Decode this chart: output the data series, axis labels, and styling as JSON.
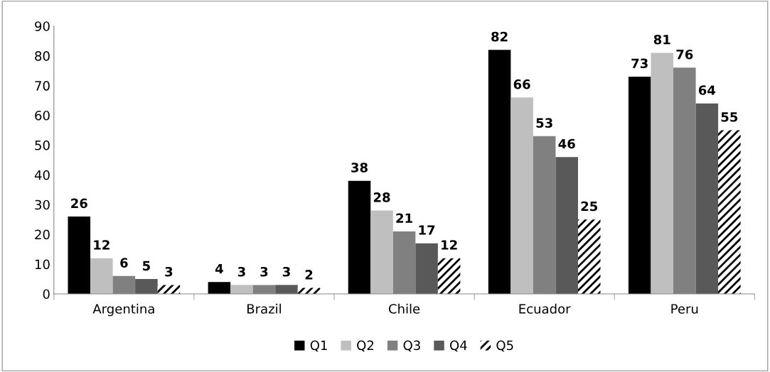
{
  "chart_data": {
    "type": "bar",
    "categories": [
      "Argentina",
      "Brazil",
      "Chile",
      "Ecuador",
      "Peru"
    ],
    "series": [
      {
        "name": "Q1",
        "color": "#000000",
        "values": [
          26,
          4,
          38,
          82,
          73
        ]
      },
      {
        "name": "Q2",
        "color": "#bfbfbf",
        "values": [
          12,
          3,
          28,
          66,
          81
        ]
      },
      {
        "name": "Q3",
        "color": "#808080",
        "values": [
          6,
          3,
          21,
          53,
          76
        ]
      },
      {
        "name": "Q4",
        "color": "#595959",
        "values": [
          5,
          3,
          17,
          46,
          64
        ]
      },
      {
        "name": "Q5",
        "color": "#ffffff",
        "values": [
          3,
          2,
          12,
          25,
          55
        ]
      }
    ],
    "ylim": [
      0,
      90
    ],
    "yticks": [
      0,
      10,
      20,
      30,
      40,
      50,
      60,
      70,
      80,
      90
    ],
    "grid": false,
    "legend": "bottom",
    "data_labels": true
  }
}
